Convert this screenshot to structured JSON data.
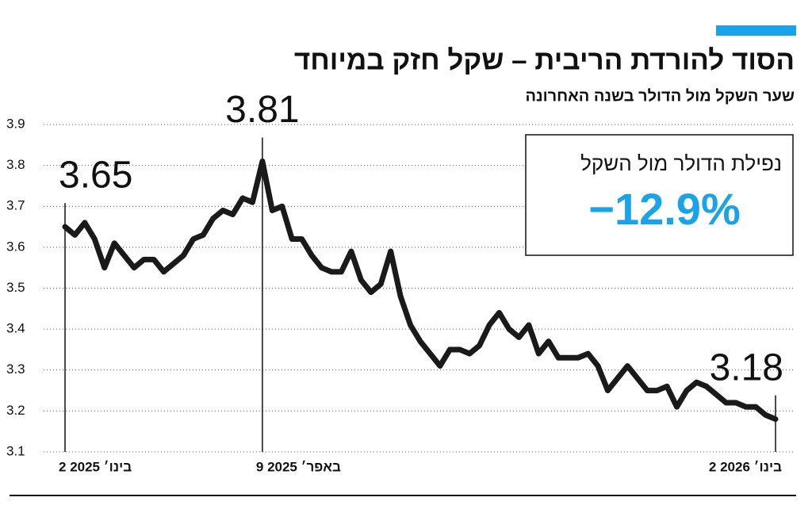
{
  "chart_data": {
    "type": "line",
    "title": "הסוד להורדת הריבית – שקל חזק במיוחד",
    "subtitle": "שער השקל מול הדולר בשנה האחרונה",
    "annotation": {
      "label": "נפילת הדולר מול השקל",
      "value": "−12.9%"
    },
    "categories": [
      "2 בינו׳ 2025",
      null,
      null,
      null,
      null,
      null,
      null,
      null,
      null,
      null,
      null,
      null,
      null,
      null,
      null,
      null,
      null,
      null,
      null,
      null,
      "9 באפר׳ 2025",
      null,
      null,
      null,
      null,
      null,
      null,
      null,
      null,
      null,
      null,
      null,
      null,
      null,
      null,
      null,
      null,
      null,
      null,
      null,
      null,
      null,
      null,
      null,
      null,
      null,
      null,
      null,
      null,
      null,
      null,
      null,
      null,
      null,
      null,
      null,
      null,
      null,
      null,
      null,
      null,
      null,
      null,
      null,
      null,
      null,
      null,
      null,
      null,
      null,
      null,
      null,
      "2 בינו׳ 2026"
    ],
    "series": [
      {
        "name": "שער השקל מול הדולר",
        "color": "#1a1a1a",
        "values": [
          3.65,
          3.63,
          3.66,
          3.62,
          3.55,
          3.61,
          3.58,
          3.55,
          3.57,
          3.57,
          3.54,
          3.56,
          3.58,
          3.62,
          3.63,
          3.67,
          3.69,
          3.68,
          3.72,
          3.71,
          3.81,
          3.69,
          3.7,
          3.62,
          3.62,
          3.58,
          3.55,
          3.54,
          3.54,
          3.59,
          3.52,
          3.49,
          3.51,
          3.59,
          3.48,
          3.41,
          3.37,
          3.34,
          3.31,
          3.35,
          3.35,
          3.34,
          3.36,
          3.41,
          3.44,
          3.4,
          3.38,
          3.41,
          3.34,
          3.37,
          3.33,
          3.33,
          3.33,
          3.34,
          3.31,
          3.25,
          3.28,
          3.31,
          3.28,
          3.25,
          3.25,
          3.26,
          3.21,
          3.25,
          3.27,
          3.26,
          3.24,
          3.22,
          3.22,
          3.21,
          3.21,
          3.19,
          3.18
        ]
      }
    ],
    "ylim": [
      3.1,
      3.9
    ],
    "yticks": [
      3.1,
      3.2,
      3.3,
      3.4,
      3.5,
      3.6,
      3.7,
      3.8,
      3.9
    ],
    "grid": true
  }
}
